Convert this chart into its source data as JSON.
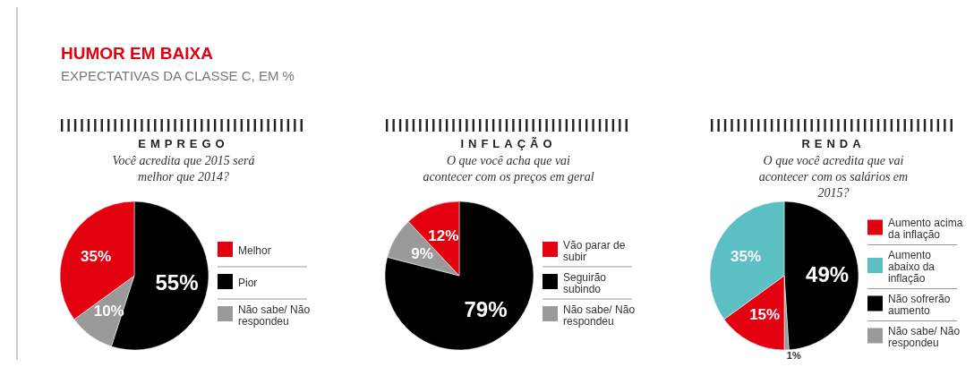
{
  "chart_data": [
    {
      "type": "other",
      "title": "HUMOR EM BAIXA",
      "subtitle": "EXPECTATIVAS DA CLASSE C, EM %"
    },
    {
      "type": "pie",
      "title": "EMPREGO",
      "subtitle": "Você acredita que 2015 será melhor que 2014?",
      "categories": [
        "Melhor",
        "Pior",
        "Não sabe/ Não respondeu"
      ],
      "values": [
        35,
        55,
        10
      ],
      "value_labels": [
        "35%",
        "55%",
        "10%"
      ],
      "colors": [
        "#e3000f",
        "#000000",
        "#9a9a9a"
      ],
      "legend": "right"
    },
    {
      "type": "pie",
      "title": "INFLAÇÃO",
      "subtitle": "O que você acha que vai acontecer com os preços em geral",
      "categories": [
        "Vão parar de subir",
        "Seguirão subindo",
        "Não sabe/ Não respondeu"
      ],
      "values": [
        12,
        79,
        9
      ],
      "value_labels": [
        "12%",
        "79%",
        "9%"
      ],
      "colors": [
        "#e3000f",
        "#000000",
        "#9a9a9a"
      ],
      "legend": "right"
    },
    {
      "type": "pie",
      "title": "RENDA",
      "subtitle": "O que você acredita que vai acontecer com os salários em 2015?",
      "categories": [
        "Aumento acima da inflação",
        "Aumento abaixo da inflação",
        "Não sofrerão aumento",
        "Não sabe/ Não respondeu"
      ],
      "values": [
        15,
        35,
        49,
        1
      ],
      "value_labels": [
        "15%",
        "35%",
        "49%",
        "1%"
      ],
      "colors": [
        "#e3000f",
        "#5bbfc4",
        "#000000",
        "#9a9a9a"
      ],
      "legend": "right"
    }
  ]
}
